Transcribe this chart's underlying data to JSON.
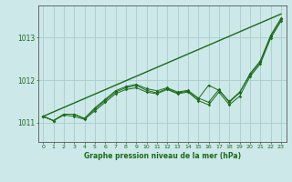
{
  "title": "Graphe pression niveau de la mer (hPa)",
  "bg_color": "#cce8e8",
  "grid_color": "#aacccc",
  "line_color": "#1a6b1a",
  "xlim": [
    -0.5,
    23.5
  ],
  "ylim": [
    1010.55,
    1013.75
  ],
  "yticks": [
    1011,
    1012,
    1013
  ],
  "xticks": [
    0,
    1,
    2,
    3,
    4,
    5,
    6,
    7,
    8,
    9,
    10,
    11,
    12,
    13,
    14,
    15,
    16,
    17,
    18,
    19,
    20,
    21,
    22,
    23
  ],
  "trend_x": [
    0,
    23
  ],
  "trend_y": [
    1011.15,
    1013.55
  ],
  "series1": [
    1011.15,
    1011.05,
    1011.2,
    1011.2,
    1011.1,
    1011.35,
    1011.55,
    1011.75,
    1011.85,
    1011.9,
    1011.8,
    1011.75,
    1011.82,
    1011.72,
    1011.76,
    1011.58,
    1011.48,
    1011.78,
    1011.48,
    1011.7,
    1012.15,
    1012.45,
    1013.05,
    1013.45
  ],
  "series2": [
    1011.15,
    1011.05,
    1011.18,
    1011.15,
    1011.08,
    1011.28,
    1011.48,
    1011.68,
    1011.78,
    1011.82,
    1011.72,
    1011.68,
    1011.78,
    1011.68,
    1011.72,
    1011.52,
    1011.42,
    1011.72,
    1011.42,
    1011.62,
    1012.08,
    1012.38,
    1012.98,
    1013.38
  ],
  "series3": [
    1011.15,
    1011.05,
    1011.2,
    1011.2,
    1011.1,
    1011.32,
    1011.52,
    1011.72,
    1011.82,
    1011.88,
    1011.76,
    1011.7,
    1011.8,
    1011.7,
    1011.74,
    1011.56,
    1011.88,
    1011.76,
    1011.5,
    1011.72,
    1012.12,
    1012.42,
    1013.02,
    1013.42
  ]
}
